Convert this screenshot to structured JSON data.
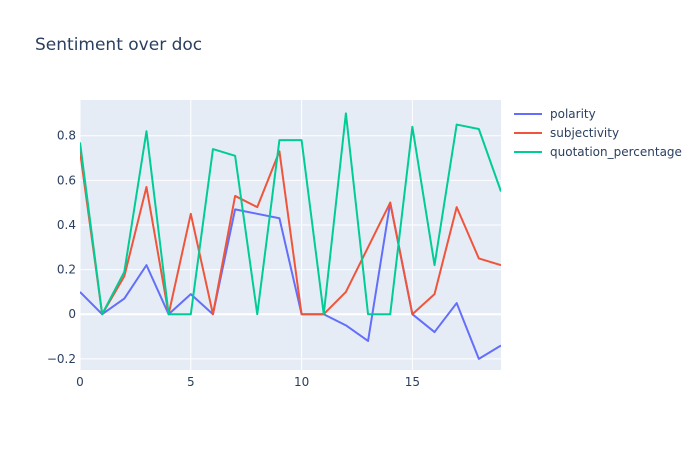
{
  "chart_data": {
    "type": "line",
    "title": "Sentiment over doc",
    "xlabel": "",
    "ylabel": "",
    "x": [
      0,
      1,
      2,
      3,
      4,
      5,
      6,
      7,
      8,
      9,
      10,
      11,
      12,
      13,
      14,
      15,
      16,
      17,
      18,
      19
    ],
    "xlim": [
      0,
      19
    ],
    "ylim": [
      -0.25,
      0.96
    ],
    "xticks": [
      0,
      5,
      10,
      15
    ],
    "yticks": [
      -0.2,
      0,
      0.2,
      0.4,
      0.6,
      0.8
    ],
    "ytick_labels": [
      "−0.2",
      "0",
      "0.2",
      "0.4",
      "0.6",
      "0.8"
    ],
    "grid": true,
    "legend": "top-right-outside",
    "series": [
      {
        "name": "polarity",
        "color": "#636efa",
        "values": [
          0.1,
          0.0,
          0.07,
          0.22,
          0.0,
          0.09,
          0.0,
          0.47,
          0.45,
          0.43,
          0.0,
          0.0,
          -0.05,
          -0.12,
          0.5,
          0.0,
          -0.08,
          0.05,
          -0.2,
          -0.14
        ]
      },
      {
        "name": "subjectivity",
        "color": "#ef553b",
        "values": [
          0.73,
          0.0,
          0.17,
          0.57,
          0.0,
          0.45,
          0.0,
          0.53,
          0.48,
          0.73,
          0.0,
          0.0,
          0.1,
          0.3,
          0.5,
          0.0,
          0.09,
          0.48,
          0.25,
          0.22
        ]
      },
      {
        "name": "quotation_percentage",
        "color": "#00cc96",
        "values": [
          0.77,
          0.0,
          0.19,
          0.82,
          0.0,
          0.0,
          0.74,
          0.71,
          0.0,
          0.78,
          0.78,
          0.0,
          0.9,
          0.0,
          0.0,
          0.84,
          0.22,
          0.85,
          0.83,
          0.55
        ]
      }
    ]
  }
}
